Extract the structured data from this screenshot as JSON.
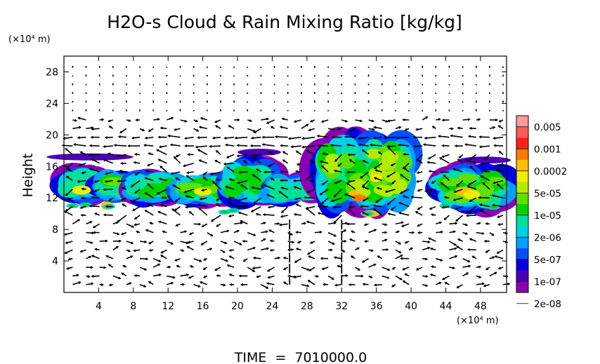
{
  "chart_data": {
    "type": "heatmap",
    "title": "H2O-s Cloud & Rain Mixing Ratio [kg/kg]",
    "ylabel": "Height",
    "y_unit_label": "(×10⁴ m)",
    "x_unit_label": "(×10⁴ m)",
    "footer": "TIME  =  7010000.0",
    "xlim": [
      0,
      51
    ],
    "ylim": [
      0,
      30
    ],
    "x_ticks": [
      4,
      8,
      12,
      16,
      20,
      24,
      28,
      32,
      36,
      40,
      44,
      48
    ],
    "x_tick_labels": [
      "4",
      "8",
      "12",
      "16",
      "20",
      "24",
      "28",
      "32",
      "36",
      "40",
      "44",
      "48"
    ],
    "y_ticks": [
      4,
      8,
      12,
      16,
      20,
      24,
      28
    ],
    "y_tick_labels": [
      "4",
      "8",
      "12",
      "16",
      "20",
      "24",
      "28"
    ],
    "grid": false,
    "colorbar": {
      "labels": [
        "0.005",
        "0.001",
        "0.0002",
        "5e-05",
        "1e-05",
        "2e-06",
        "5e-07",
        "1e-07",
        "2e-08"
      ],
      "colors": [
        "#ff9c9c",
        "#ff5a5a",
        "#ff1e1e",
        "#ff7a00",
        "#ffbf00",
        "#f0ee00",
        "#b4ec00",
        "#5ee000",
        "#00d200",
        "#00e09a",
        "#00cfe6",
        "#00a0ff",
        "#0050ff",
        "#0000e0",
        "#4b00b4",
        "#8c00b4"
      ]
    },
    "cloud_regions": [
      {
        "x": [
          0,
          4.5
        ],
        "y": [
          11.8,
          15.5
        ],
        "level": 6
      },
      {
        "x": [
          4.5,
          8
        ],
        "y": [
          12,
          15
        ],
        "level": 4
      },
      {
        "x": [
          8,
          13
        ],
        "y": [
          11.8,
          14.8
        ],
        "level": 5
      },
      {
        "x": [
          13,
          19
        ],
        "y": [
          11.8,
          14.5
        ],
        "level": 4
      },
      {
        "x": [
          19,
          24
        ],
        "y": [
          11.8,
          16.5
        ],
        "level": 5
      },
      {
        "x": [
          24,
          29
        ],
        "y": [
          11.8,
          14.5
        ],
        "level": 6
      },
      {
        "x": [
          29,
          40
        ],
        "y": [
          11,
          19.5
        ],
        "level": 3
      },
      {
        "x": [
          43,
          51
        ],
        "y": [
          11,
          15.5
        ],
        "level": 4
      }
    ]
  }
}
